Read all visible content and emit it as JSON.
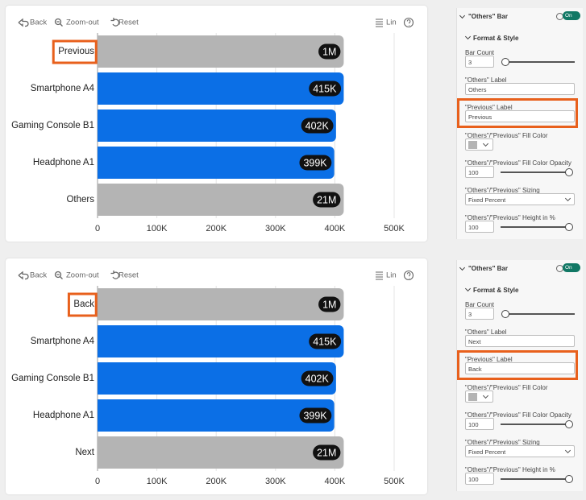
{
  "chart_data": [
    {
      "type": "bar",
      "orientation": "horizontal",
      "categories": [
        "Previous",
        "Smartphone A4",
        "Gaming Console B1",
        "Headphone A1",
        "Others"
      ],
      "values": [
        1000000,
        415000,
        402000,
        399000,
        21000000
      ],
      "value_labels": [
        "1M",
        "415K",
        "402K",
        "399K",
        "21M"
      ],
      "color": "#0b6fe6",
      "xlim": [
        0,
        500000
      ],
      "xticks": [
        0,
        {
          "value": 100000,
          "label": "100K"
        },
        {
          "value": 200000,
          "label": "200K"
        },
        {
          "value": 300000,
          "label": "300K"
        },
        {
          "value": 400000,
          "label": "400K"
        },
        {
          "value": 500000,
          "label": "500K"
        }
      ],
      "grid": true
    },
    {
      "type": "bar",
      "orientation": "horizontal",
      "categories": [
        "Back",
        "Smartphone A4",
        "Gaming Console B1",
        "Headphone A1",
        "Next"
      ],
      "values": [
        1000000,
        415000,
        402000,
        399000,
        21000000
      ],
      "value_labels": [
        "1M",
        "415K",
        "402K",
        "399K",
        "21M"
      ],
      "color": "#0b6fe6",
      "xlim": [
        0,
        500000
      ],
      "xticks": [
        0,
        {
          "value": 100000,
          "label": "100K"
        },
        {
          "value": 200000,
          "label": "200K"
        },
        {
          "value": 300000,
          "label": "300K"
        },
        {
          "value": 400000,
          "label": "400K"
        },
        {
          "value": 500000,
          "label": "500K"
        }
      ],
      "grid": true
    }
  ],
  "toolbars": [
    {
      "back": "Back",
      "zoom_out": "Zoom-out",
      "reset": "Reset",
      "scale": "Lin"
    },
    {
      "back": "Back",
      "zoom_out": "Zoom-out",
      "reset": "Reset",
      "scale": "Lin"
    }
  ],
  "format_panes": [
    {
      "header": "\"Others\" Bar",
      "toggle": "On",
      "section": "Format & Style",
      "fields": [
        {
          "label": "Bar Count",
          "value": 3
        },
        {
          "label": "\"Others\" Label",
          "value": "Others"
        },
        {
          "label": "\"Previous\" Label",
          "value": "Previous"
        },
        {
          "label": "\"Others\"/\"Previous\" Fill Color",
          "color": "#b4b4b4"
        },
        {
          "label": "\"Others\"/\"Previous\" Fill Color Opacity",
          "value": 100
        },
        {
          "label": "\"Others\"/\"Previous\" Sizing",
          "value": "Fixed Percent"
        },
        {
          "label": "\"Others\"/\"Previous\" Height in %",
          "value": 100
        }
      ]
    },
    {
      "header": "\"Others\" Bar",
      "toggle": "On",
      "section": "Format & Style",
      "fields": [
        {
          "label": "Bar Count",
          "value": 3
        },
        {
          "label": "\"Others\" Label",
          "value": "Next"
        },
        {
          "label": "\"Previous\" Label",
          "value": "Back"
        },
        {
          "label": "\"Others\"/\"Previous\" Fill Color",
          "color": "#b4b4b4"
        },
        {
          "label": "\"Others\"/\"Previous\" Fill Color Opacity",
          "value": 100
        },
        {
          "label": "\"Others\"/\"Previous\" Sizing",
          "value": "Fixed Percent"
        },
        {
          "label": "\"Others\"/\"Previous\" Height in %",
          "value": 100
        }
      ]
    }
  ]
}
